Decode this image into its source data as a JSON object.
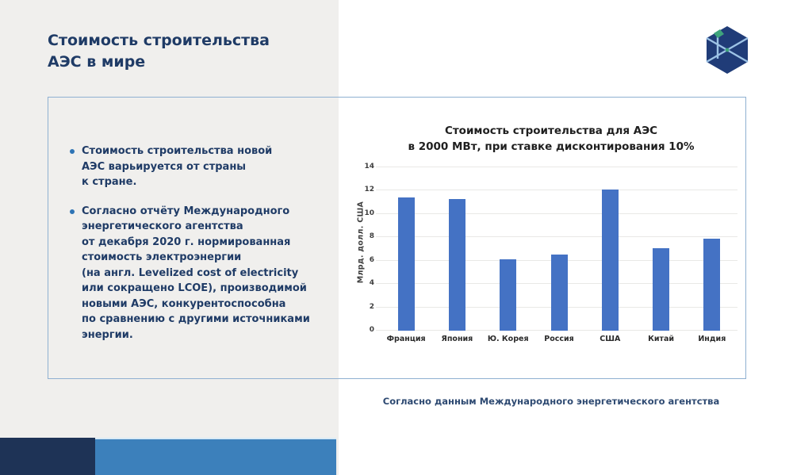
{
  "slide": {
    "title": "Стоимость строительства\nАЭС в мире",
    "bullets": [
      "Стоимость строительства новой\nАЭС варьируется от страны\nк стране.",
      "Согласно отчёту Международного\nэнергетического агентства\nот декабря 2020 г. нормированная\nстоимость электроэнергии\n(на англ. Levelized cost of electricity\nили сокращено LCOE), производимой\nновыми АЭС, конкурентоспособна\nпо сравнению с другими источниками\nэнергии."
    ],
    "caption": "Согласно данным Международного энергетического агентства"
  },
  "logo": {
    "name": "wireframe-cube-logo",
    "hex_fill": "#203c78",
    "line_color": "#9dc3e6",
    "accent_color": "#3fa47c"
  },
  "chart_data": {
    "type": "bar",
    "title": "Стоимость строительства для АЭС\nв 2000 МВт, при ставке дисконтирования 10%",
    "categories": [
      "Франция",
      "Япония",
      "Ю. Корея",
      "Россия",
      "США",
      "Китай",
      "Индия"
    ],
    "values": [
      11.4,
      11.3,
      6.1,
      6.5,
      12.1,
      7.1,
      7.9
    ],
    "xlabel": "",
    "ylabel": "Млрд. долл. США",
    "ylim": [
      0,
      14
    ],
    "yticks": [
      0,
      2,
      4,
      6,
      8,
      10,
      12,
      14
    ],
    "bar_color": "#4472c4",
    "grid": true,
    "legend_position": "none"
  },
  "colors": {
    "left_background": "#f0efed",
    "right_background": "#ffffff",
    "title_text": "#1f3b66",
    "bullet_dot": "#2e74b5",
    "card_border": "#8fb0d1",
    "strip_navy": "#1e3356",
    "strip_blue": "#3c80bb"
  }
}
